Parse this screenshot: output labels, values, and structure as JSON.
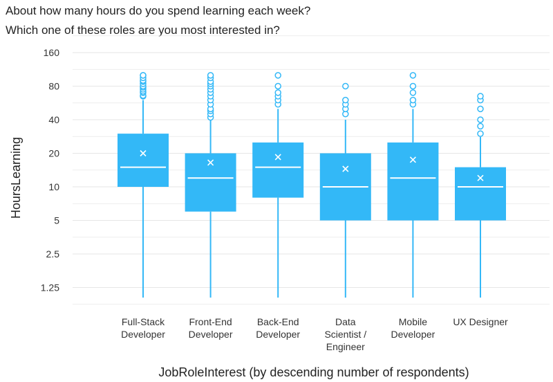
{
  "chart_data": {
    "type": "box",
    "title_lines": [
      "About how many hours do you spend learning each week?",
      "Which one of these roles are you most interested in?"
    ],
    "xlabel": "JobRoleInterest (by descending number of respondents)",
    "ylabel": "HoursLearning",
    "y_scale": "log2",
    "y_ticks": [
      1.25,
      2.5,
      5,
      10,
      20,
      40,
      80,
      160
    ],
    "y_tick_labels": [
      "1.25",
      "2.5",
      "5",
      "10",
      "20",
      "40",
      "80",
      "160"
    ],
    "ylim": [
      0.95,
      160
    ],
    "grid": true,
    "colors": {
      "box": "#33b8f7",
      "whisker": "#33b8f7",
      "median": "#ffffff",
      "mean_marker": "#ffffff",
      "outlier": "#33b8f7",
      "grid": "#e6e6e6"
    },
    "categories": [
      {
        "label_lines": [
          "Full-Stack",
          "Developer"
        ],
        "q1": 10,
        "median": 15,
        "q3": 30,
        "mean": 20,
        "whisker_low": 1,
        "whisker_high": 60,
        "outliers": [
          65,
          66,
          70,
          72,
          75,
          78,
          80,
          84,
          88,
          90,
          95,
          100,
          100
        ]
      },
      {
        "label_lines": [
          "Front-End",
          "Developer"
        ],
        "q1": 6,
        "median": 12,
        "q3": 20,
        "mean": 16.5,
        "whisker_low": 1,
        "whisker_high": 40,
        "outliers": [
          42,
          45,
          48,
          50,
          55,
          60,
          65,
          70,
          75,
          80,
          84,
          88,
          95,
          100
        ]
      },
      {
        "label_lines": [
          "Back-End",
          "Developer"
        ],
        "q1": 8,
        "median": 15,
        "q3": 25,
        "mean": 18.5,
        "whisker_low": 1,
        "whisker_high": 50,
        "outliers": [
          55,
          60,
          65,
          70,
          80,
          100
        ]
      },
      {
        "label_lines": [
          "Data",
          "Scientist /",
          "Engineer"
        ],
        "q1": 5,
        "median": 10,
        "q3": 20,
        "mean": 14.5,
        "whisker_low": 1,
        "whisker_high": 40,
        "outliers": [
          45,
          50,
          55,
          60,
          80
        ]
      },
      {
        "label_lines": [
          "Mobile",
          "Developer"
        ],
        "q1": 5,
        "median": 12,
        "q3": 25,
        "mean": 17.5,
        "whisker_low": 1,
        "whisker_high": 50,
        "outliers": [
          55,
          60,
          70,
          80,
          100
        ]
      },
      {
        "label_lines": [
          "UX Designer"
        ],
        "q1": 5,
        "median": 10,
        "q3": 15,
        "mean": 12,
        "whisker_low": 1,
        "whisker_high": 28,
        "outliers": [
          30,
          35,
          40,
          50,
          60,
          65
        ]
      }
    ]
  }
}
